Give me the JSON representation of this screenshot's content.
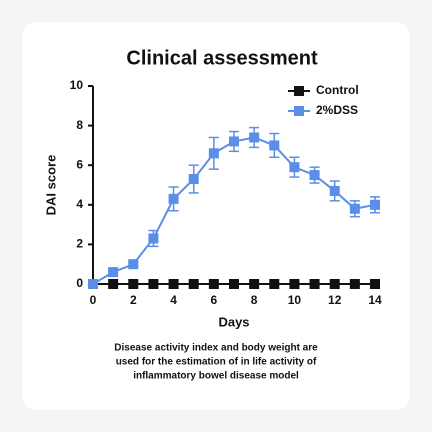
{
  "chart_data": {
    "type": "line",
    "title": "Clinical assessment",
    "x_label": "Days",
    "y_label": "DAI score",
    "x": [
      0,
      1,
      2,
      3,
      4,
      5,
      6,
      7,
      8,
      9,
      10,
      11,
      12,
      13,
      14
    ],
    "series": [
      {
        "name": "Control",
        "color": "#111111",
        "values": [
          0,
          0,
          0,
          0,
          0,
          0,
          0,
          0,
          0,
          0,
          0,
          0,
          0,
          0,
          0
        ],
        "errors": [
          0,
          0,
          0,
          0,
          0,
          0,
          0,
          0,
          0,
          0,
          0,
          0,
          0,
          0,
          0
        ]
      },
      {
        "name": "2%DSS",
        "color": "#5b8ee6",
        "values": [
          0,
          0.6,
          1.0,
          2.3,
          4.3,
          5.3,
          6.6,
          7.2,
          7.4,
          7.0,
          5.9,
          5.5,
          4.7,
          3.8,
          4.0
        ],
        "errors": [
          0,
          0.1,
          0.1,
          0.4,
          0.6,
          0.7,
          0.8,
          0.5,
          0.5,
          0.6,
          0.5,
          0.4,
          0.5,
          0.4,
          0.4
        ]
      }
    ],
    "xlim": [
      0,
      14
    ],
    "xticks": [
      0,
      2,
      4,
      6,
      8,
      10,
      12,
      14
    ],
    "ylim": [
      0,
      10
    ],
    "yticks": [
      0,
      2,
      4,
      6,
      8,
      10
    ],
    "legend": "upper right",
    "caption": [
      "Disease activity index and body weight are",
      "used for the estimation of in life activity of",
      "inflammatory bowel disease model"
    ]
  }
}
